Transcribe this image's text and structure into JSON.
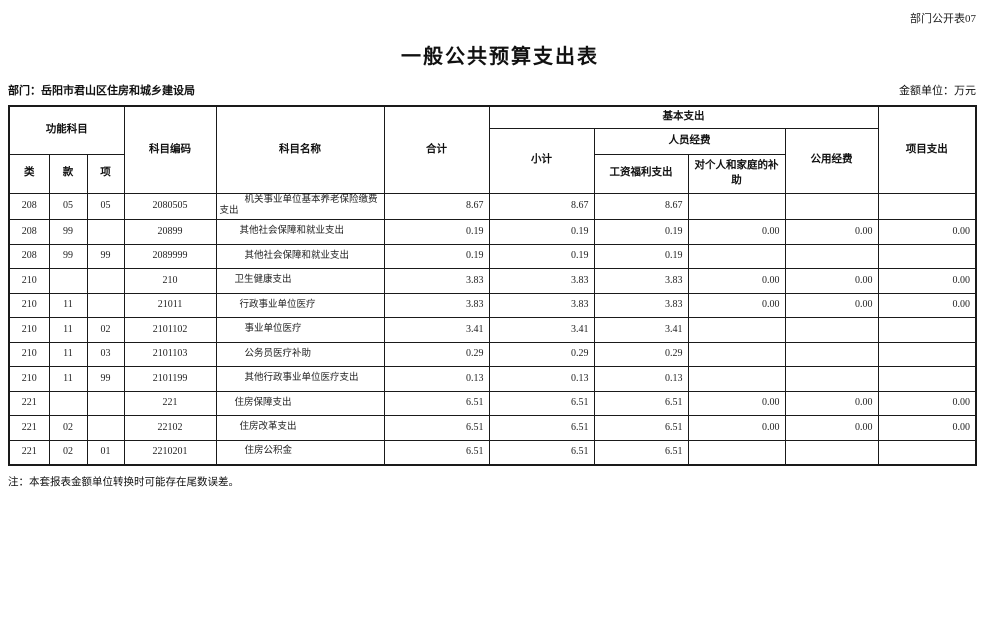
{
  "page": {
    "corner_label": "部门公开表07",
    "title": "一般公共预算支出表",
    "department": "部门：岳阳市君山区住房和城乡建设局",
    "unit": "金额单位：万元",
    "note": "注：本套报表金额单位转换时可能存在尾数误差。"
  },
  "table": {
    "headers": {
      "functional_category": "功能科目",
      "lei": "类",
      "kuan": "款",
      "xiang": "项",
      "code": "科目编码",
      "name": "科目名称",
      "total": "合计",
      "basic_expenditure": "基本支出",
      "subtotal": "小计",
      "personnel_funds": "人员经费",
      "wages_welfare": "工资福利支出",
      "individual_family_subsidy": "对个人和家庭的补助",
      "public_funds": "公用经费",
      "project_expenditure": "项目支出"
    },
    "rows": [
      {
        "lei": "208",
        "kuan": "05",
        "xiang": "05",
        "code": "2080505",
        "name": "机关事业单位基本养老保险缴费支出",
        "level": 3,
        "values": [
          "8.67",
          "8.67",
          "8.67",
          "",
          "",
          ""
        ]
      },
      {
        "lei": "208",
        "kuan": "99",
        "xiang": "",
        "code": "20899",
        "name": "其他社会保障和就业支出",
        "level": 2,
        "values": [
          "0.19",
          "0.19",
          "0.19",
          "0.00",
          "0.00",
          "0.00"
        ]
      },
      {
        "lei": "208",
        "kuan": "99",
        "xiang": "99",
        "code": "2089999",
        "name": "其他社会保障和就业支出",
        "level": 3,
        "values": [
          "0.19",
          "0.19",
          "0.19",
          "",
          "",
          ""
        ]
      },
      {
        "lei": "210",
        "kuan": "",
        "xiang": "",
        "code": "210",
        "name": "卫生健康支出",
        "level": 1,
        "values": [
          "3.83",
          "3.83",
          "3.83",
          "0.00",
          "0.00",
          "0.00"
        ]
      },
      {
        "lei": "210",
        "kuan": "11",
        "xiang": "",
        "code": "21011",
        "name": "行政事业单位医疗",
        "level": 2,
        "values": [
          "3.83",
          "3.83",
          "3.83",
          "0.00",
          "0.00",
          "0.00"
        ]
      },
      {
        "lei": "210",
        "kuan": "11",
        "xiang": "02",
        "code": "2101102",
        "name": "事业单位医疗",
        "level": 3,
        "values": [
          "3.41",
          "3.41",
          "3.41",
          "",
          "",
          ""
        ]
      },
      {
        "lei": "210",
        "kuan": "11",
        "xiang": "03",
        "code": "2101103",
        "name": "公务员医疗补助",
        "level": 3,
        "values": [
          "0.29",
          "0.29",
          "0.29",
          "",
          "",
          ""
        ]
      },
      {
        "lei": "210",
        "kuan": "11",
        "xiang": "99",
        "code": "2101199",
        "name": "其他行政事业单位医疗支出",
        "level": 3,
        "values": [
          "0.13",
          "0.13",
          "0.13",
          "",
          "",
          ""
        ]
      },
      {
        "lei": "221",
        "kuan": "",
        "xiang": "",
        "code": "221",
        "name": "住房保障支出",
        "level": 1,
        "values": [
          "6.51",
          "6.51",
          "6.51",
          "0.00",
          "0.00",
          "0.00"
        ]
      },
      {
        "lei": "221",
        "kuan": "02",
        "xiang": "",
        "code": "22102",
        "name": "住房改革支出",
        "level": 2,
        "values": [
          "6.51",
          "6.51",
          "6.51",
          "0.00",
          "0.00",
          "0.00"
        ]
      },
      {
        "lei": "221",
        "kuan": "02",
        "xiang": "01",
        "code": "2210201",
        "name": "住房公积金",
        "level": 3,
        "values": [
          "6.51",
          "6.51",
          "6.51",
          "",
          "",
          ""
        ]
      }
    ]
  }
}
